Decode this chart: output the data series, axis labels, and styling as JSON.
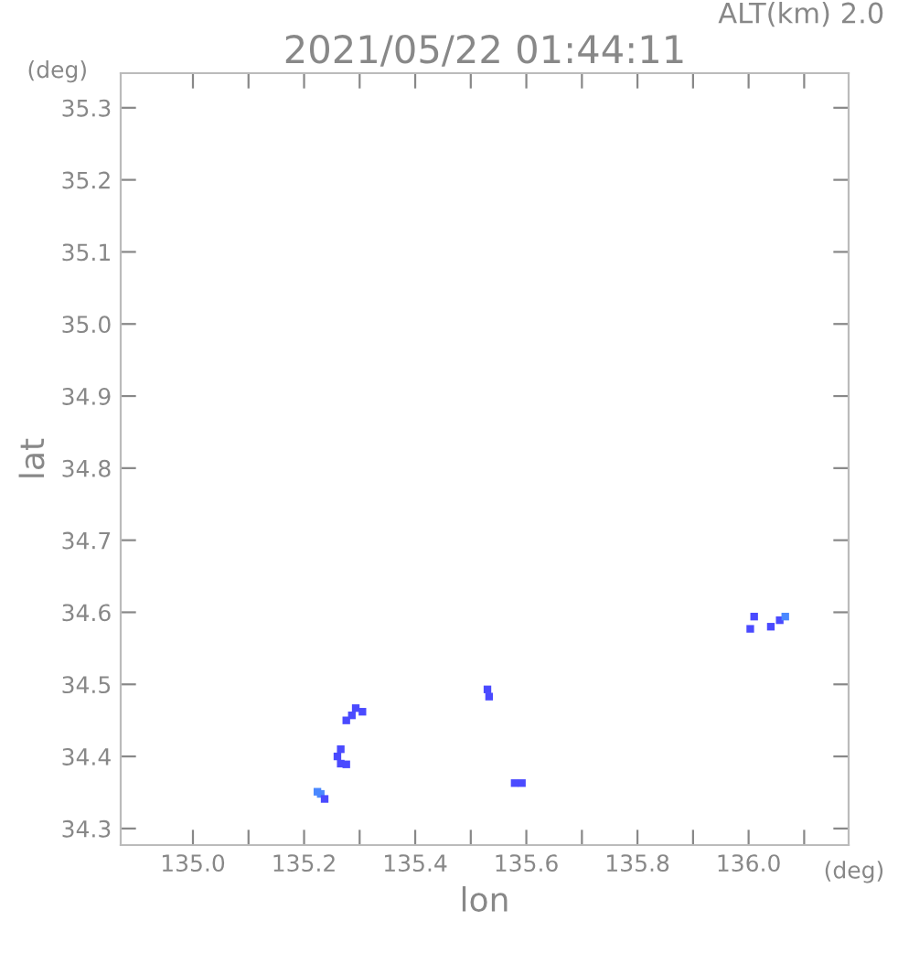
{
  "chart_data": {
    "type": "scatter",
    "title": "2021/05/22 01:44:11",
    "xlabel": "lon",
    "ylabel": "lat",
    "annotations": [
      "ALT(km) 2.0",
      "(deg)",
      "(deg)"
    ],
    "x": [
      135.276,
      135.286,
      135.293,
      135.305,
      135.224,
      135.23,
      135.237,
      135.26,
      135.266,
      135.266,
      135.276,
      135.53,
      135.533,
      135.579,
      135.592,
      136.01,
      136.003,
      136.04,
      136.056,
      136.066
    ],
    "values": [
      34.45,
      34.457,
      34.467,
      34.462,
      34.351,
      34.348,
      34.341,
      34.4,
      34.41,
      34.39,
      34.389,
      34.493,
      34.483,
      34.363,
      34.363,
      34.594,
      34.577,
      34.58,
      34.589,
      34.594
    ],
    "colors": [
      "#4a4aff",
      "#4a4aff",
      "#4a4aff",
      "#4a4aff",
      "#4a88ff",
      "#4a88ff",
      "#4a4aff",
      "#4a4aff",
      "#4a4aff",
      "#4a4aff",
      "#4a4aff",
      "#4a4aff",
      "#4a4aff",
      "#4a4aff",
      "#4a4aff",
      "#4a4aff",
      "#4a4aff",
      "#4a4aff",
      "#4a4aff",
      "#4a88ff"
    ],
    "marker": "square",
    "grid": false,
    "xlim": [
      134.87,
      136.18
    ],
    "ylim": [
      34.277,
      35.348
    ],
    "xticks": [
      {
        "value": 135.0,
        "label": "135.0"
      },
      {
        "value": 135.1,
        "label": null
      },
      135.2,
      {
        "value": 135.3,
        "label": null
      },
      135.4,
      {
        "value": 135.5,
        "label": null
      },
      135.6,
      {
        "value": 135.7,
        "label": null
      },
      135.8,
      {
        "value": 135.9,
        "label": null
      },
      {
        "value": 136.0,
        "label": "136.0"
      },
      {
        "value": 136.1,
        "label": null
      }
    ],
    "yticks": [
      34.3,
      34.4,
      34.5,
      34.6,
      34.7,
      34.8,
      34.9,
      {
        "value": 35.0,
        "label": "35.0"
      },
      35.1,
      35.2,
      35.3
    ]
  }
}
